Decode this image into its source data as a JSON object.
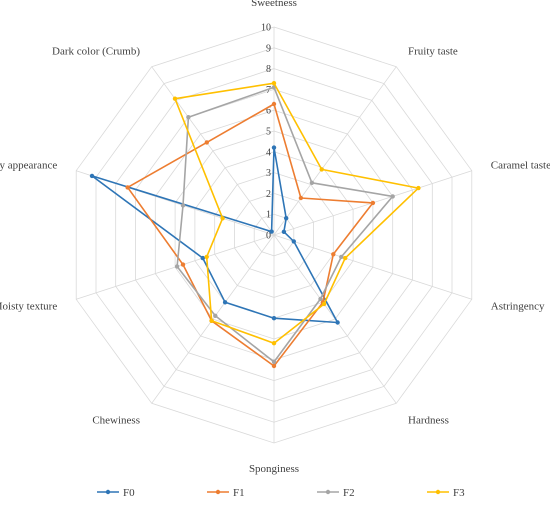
{
  "chart_data": {
    "type": "radar",
    "axes": [
      "Sweetness",
      "Fruity taste",
      "Caramel taste",
      "Astringency",
      "Hardness",
      "Sponginess",
      "Chewiness",
      "Moisty texture",
      "Puffy appearance",
      "Dark color (Crumb)"
    ],
    "rlim": [
      0,
      10
    ],
    "ticks": [
      "0",
      "1",
      "2",
      "3",
      "4",
      "5",
      "6",
      "7",
      "8",
      "9",
      "10"
    ],
    "grid": true,
    "legend_position": "bottom",
    "series": [
      {
        "name": "F0",
        "color": "#2e75b6",
        "values": [
          4.2,
          1.0,
          0.5,
          1.0,
          5.2,
          4.0,
          4.0,
          3.6,
          9.2,
          0.2
        ]
      },
      {
        "name": "F1",
        "color": "#ed7d31",
        "values": [
          6.3,
          2.2,
          5.0,
          3.0,
          4.0,
          6.3,
          5.1,
          4.6,
          7.4,
          5.5
        ]
      },
      {
        "name": "F2",
        "color": "#a5a5a5",
        "values": [
          7.1,
          3.1,
          6.0,
          3.4,
          3.8,
          6.1,
          4.8,
          4.9,
          4.6,
          7.0
        ]
      },
      {
        "name": "F3",
        "color": "#ffc000",
        "values": [
          7.3,
          3.9,
          7.3,
          3.6,
          4.1,
          5.2,
          5.1,
          3.4,
          2.6,
          8.1
        ]
      }
    ]
  }
}
